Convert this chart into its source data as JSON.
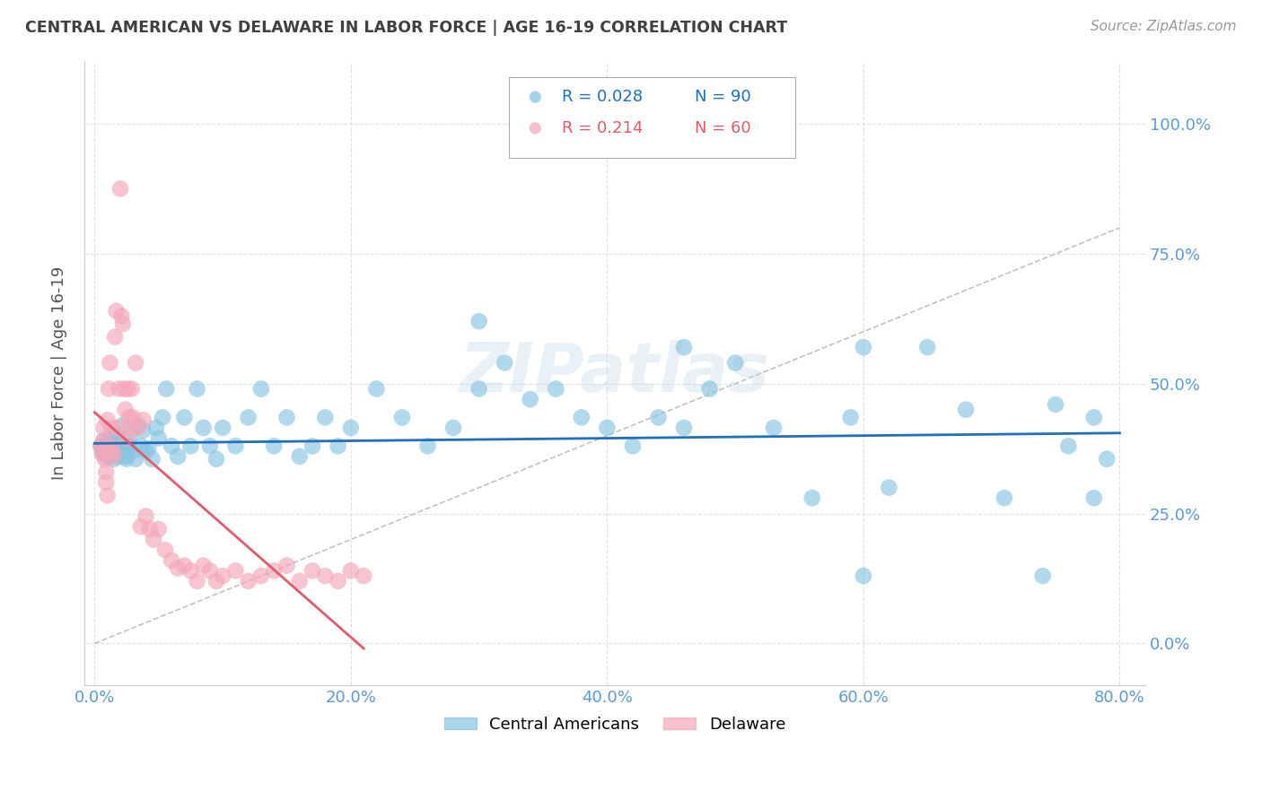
{
  "title": "CENTRAL AMERICAN VS DELAWARE IN LABOR FORCE | AGE 16-19 CORRELATION CHART",
  "source": "Source: ZipAtlas.com",
  "ylabel": "In Labor Force | Age 16-19",
  "blue_color": "#89c4e1",
  "pink_color": "#f4a7b9",
  "blue_line_color": "#1f6fba",
  "pink_line_color": "#e05a6a",
  "diag_line_color": "#bbbbbb",
  "watermark": "ZIPatlas",
  "background_color": "#ffffff",
  "grid_color": "#cccccc",
  "tick_label_color": "#5b9bd5",
  "title_color": "#404040",
  "source_color": "#999999",
  "blue_r": 0.028,
  "blue_n": 90,
  "pink_r": 0.214,
  "pink_n": 60,
  "blue_scatter_x": [
    0.005,
    0.006,
    0.007,
    0.008,
    0.009,
    0.01,
    0.01,
    0.011,
    0.012,
    0.012,
    0.013,
    0.014,
    0.015,
    0.015,
    0.016,
    0.017,
    0.018,
    0.019,
    0.02,
    0.021,
    0.022,
    0.023,
    0.024,
    0.025,
    0.026,
    0.027,
    0.028,
    0.03,
    0.032,
    0.034,
    0.036,
    0.038,
    0.04,
    0.042,
    0.045,
    0.048,
    0.05,
    0.053,
    0.056,
    0.06,
    0.065,
    0.07,
    0.075,
    0.08,
    0.085,
    0.09,
    0.095,
    0.1,
    0.11,
    0.12,
    0.13,
    0.14,
    0.15,
    0.16,
    0.17,
    0.18,
    0.19,
    0.2,
    0.22,
    0.24,
    0.26,
    0.28,
    0.3,
    0.32,
    0.34,
    0.36,
    0.38,
    0.4,
    0.42,
    0.44,
    0.46,
    0.48,
    0.5,
    0.53,
    0.56,
    0.59,
    0.62,
    0.65,
    0.68,
    0.71,
    0.74,
    0.76,
    0.78,
    0.79,
    0.3,
    0.46,
    0.6,
    0.75,
    0.78,
    0.6
  ],
  "blue_scatter_y": [
    0.38,
    0.37,
    0.39,
    0.36,
    0.38,
    0.375,
    0.365,
    0.39,
    0.38,
    0.36,
    0.4,
    0.37,
    0.38,
    0.355,
    0.365,
    0.4,
    0.36,
    0.365,
    0.39,
    0.38,
    0.42,
    0.37,
    0.36,
    0.355,
    0.38,
    0.375,
    0.4,
    0.37,
    0.355,
    0.42,
    0.38,
    0.41,
    0.37,
    0.375,
    0.355,
    0.415,
    0.395,
    0.435,
    0.49,
    0.38,
    0.36,
    0.435,
    0.38,
    0.49,
    0.415,
    0.38,
    0.355,
    0.415,
    0.38,
    0.435,
    0.49,
    0.38,
    0.435,
    0.36,
    0.38,
    0.435,
    0.38,
    0.415,
    0.49,
    0.435,
    0.38,
    0.415,
    0.49,
    0.54,
    0.47,
    0.49,
    0.435,
    0.415,
    0.38,
    0.435,
    0.415,
    0.49,
    0.54,
    0.415,
    0.28,
    0.435,
    0.3,
    0.57,
    0.45,
    0.28,
    0.13,
    0.38,
    0.435,
    0.355,
    0.62,
    0.57,
    0.57,
    0.46,
    0.28,
    0.13
  ],
  "pink_scatter_x": [
    0.005,
    0.006,
    0.007,
    0.007,
    0.008,
    0.008,
    0.009,
    0.009,
    0.01,
    0.01,
    0.011,
    0.012,
    0.012,
    0.013,
    0.014,
    0.015,
    0.016,
    0.017,
    0.018,
    0.019,
    0.02,
    0.021,
    0.022,
    0.023,
    0.024,
    0.025,
    0.026,
    0.027,
    0.028,
    0.029,
    0.03,
    0.032,
    0.034,
    0.036,
    0.038,
    0.04,
    0.043,
    0.046,
    0.05,
    0.055,
    0.06,
    0.065,
    0.07,
    0.075,
    0.08,
    0.085,
    0.09,
    0.095,
    0.1,
    0.11,
    0.12,
    0.13,
    0.14,
    0.15,
    0.16,
    0.17,
    0.18,
    0.19,
    0.2,
    0.21
  ],
  "pink_scatter_y": [
    0.38,
    0.365,
    0.39,
    0.415,
    0.355,
    0.37,
    0.33,
    0.31,
    0.285,
    0.43,
    0.49,
    0.38,
    0.54,
    0.415,
    0.37,
    0.36,
    0.59,
    0.64,
    0.415,
    0.49,
    0.875,
    0.63,
    0.615,
    0.49,
    0.45,
    0.395,
    0.49,
    0.435,
    0.415,
    0.49,
    0.435,
    0.54,
    0.415,
    0.225,
    0.43,
    0.245,
    0.22,
    0.2,
    0.22,
    0.18,
    0.16,
    0.145,
    0.15,
    0.14,
    0.12,
    0.15,
    0.14,
    0.12,
    0.13,
    0.14,
    0.12,
    0.13,
    0.14,
    0.15,
    0.12,
    0.14,
    0.13,
    0.12,
    0.14,
    0.13
  ],
  "xlim": [
    -0.008,
    0.82
  ],
  "ylim": [
    -0.08,
    1.12
  ],
  "xtick_pos": [
    0.0,
    0.2,
    0.4,
    0.6,
    0.8
  ],
  "xtick_labels": [
    "0.0%",
    "20.0%",
    "40.0%",
    "60.0%",
    "80.0%"
  ],
  "ytick_pos": [
    0.0,
    0.25,
    0.5,
    0.75,
    1.0
  ],
  "ytick_labels": [
    "0.0%",
    "25.0%",
    "50.0%",
    "75.0%",
    "100.0%"
  ]
}
